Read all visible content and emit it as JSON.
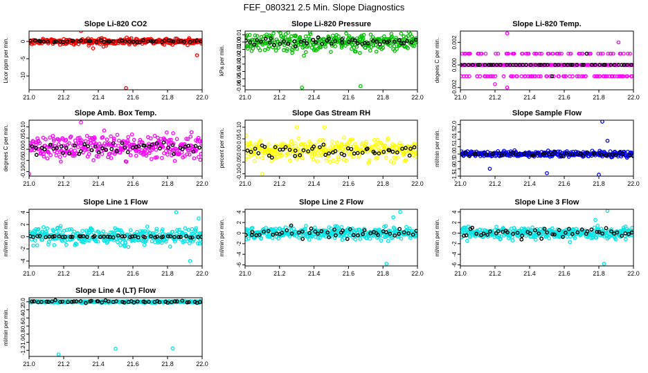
{
  "figure": {
    "title": "FEF_080321  2.5 Min. Slope Diagnostics"
  },
  "chart_data": [
    {
      "type": "scatter",
      "title": "Slope Li-820 CO2",
      "ylabel": "Licor ppm per min.",
      "xlim": [
        21.0,
        22.0
      ],
      "ylim": [
        -14,
        3
      ],
      "x_ticks": [
        "21.0",
        "21.2",
        "21.4",
        "21.6",
        "21.8",
        "22.0"
      ],
      "y_ticks": [
        {
          "v": 0,
          "label": "0"
        },
        {
          "v": -5,
          "label": "-5"
        },
        {
          "v": -10,
          "label": "-10"
        }
      ],
      "color": "#ff0000",
      "center": 0,
      "spread": 0.8,
      "black_spread": 0.3,
      "outliers": [
        [
          21.3,
          3
        ],
        [
          21.37,
          -2
        ],
        [
          21.43,
          -1.5
        ],
        [
          21.56,
          -13.5
        ],
        [
          21.97,
          -4
        ]
      ]
    },
    {
      "type": "scatter",
      "title": "Slope Li-820 Pressure",
      "ylabel": "kPa per min.",
      "xlim": [
        21.0,
        22.0
      ],
      "ylim": [
        -0.065,
        0.015
      ],
      "x_ticks": [
        "21.0",
        "21.2",
        "21.4",
        "21.6",
        "21.8",
        "22.0"
      ],
      "y_ticks": [
        {
          "v": 0.01,
          "label": "0.01"
        },
        {
          "v": 0,
          "label": "0.00"
        },
        {
          "v": -0.01,
          "label": "-0.01"
        },
        {
          "v": -0.02,
          "label": "-0.02"
        },
        {
          "v": -0.03,
          "label": "-0.03"
        },
        {
          "v": -0.04,
          "label": "-0.04"
        },
        {
          "v": -0.05,
          "label": "-0.05"
        },
        {
          "v": -0.06,
          "label": "-0.06"
        }
      ],
      "color": "#00c000",
      "center": 0,
      "spread": 0.012,
      "black_spread": 0.006,
      "outliers": [
        [
          21.33,
          -0.062
        ],
        [
          21.67,
          -0.06
        ]
      ]
    },
    {
      "type": "scatter",
      "title": "Slope Li-820 Temp.",
      "ylabel": "degees C per min.",
      "xlim": [
        21.0,
        22.0
      ],
      "ylim": [
        -0.0022,
        0.003
      ],
      "x_ticks": [
        "21.0",
        "21.2",
        "21.4",
        "21.6",
        "21.8",
        "22.0"
      ],
      "y_ticks": [
        {
          "v": 0.002,
          "label": "0.002"
        },
        {
          "v": 0,
          "label": "0.000"
        },
        {
          "v": -0.002,
          "label": "-0.002"
        }
      ],
      "color": "#ff00ff",
      "center": 0,
      "spread": 0.001,
      "black_spread": 0.0004,
      "quantum": 0.001,
      "outliers": [
        [
          21.27,
          0.0028
        ],
        [
          21.27,
          -0.002
        ],
        [
          21.2,
          -0.0017
        ]
      ]
    },
    {
      "type": "scatter",
      "title": "Slope Amb. Box Temp.",
      "ylabel": "degrees C per min.",
      "xlim": [
        21.0,
        22.0
      ],
      "ylim": [
        -0.12,
        0.13
      ],
      "x_ticks": [
        "21.0",
        "21.2",
        "21.4",
        "21.6",
        "21.8",
        "22.0"
      ],
      "y_ticks": [
        {
          "v": 0.1,
          "label": "0.10"
        },
        {
          "v": 0.05,
          "label": "0.05"
        },
        {
          "v": 0,
          "label": "0.00"
        },
        {
          "v": -0.05,
          "label": "-0.05"
        },
        {
          "v": -0.1,
          "label": "-0.10"
        }
      ],
      "color": "#ff00ff",
      "center": 0.01,
      "spread": 0.05,
      "black_spread": 0.03,
      "outliers": [
        [
          21.3,
          0.12
        ],
        [
          21.0,
          -0.11
        ]
      ]
    },
    {
      "type": "scatter",
      "title": "Slope Gas Stream RH",
      "ylabel": "percent per min.",
      "xlim": [
        21.0,
        22.0
      ],
      "ylim": [
        -0.11,
        0.13
      ],
      "x_ticks": [
        "21.0",
        "21.2",
        "21.4",
        "21.6",
        "21.8",
        "22.0"
      ],
      "y_ticks": [
        {
          "v": 0.1,
          "label": "0.10"
        },
        {
          "v": 0.05,
          "label": "0.05"
        },
        {
          "v": 0,
          "label": "0.00"
        },
        {
          "v": -0.05,
          "label": "-0.05"
        },
        {
          "v": -0.1,
          "label": "-0.10"
        }
      ],
      "color": "#ffff00",
      "center": 0,
      "spread": 0.04,
      "black_spread": 0.03,
      "outliers": [
        [
          21.1,
          -0.1
        ],
        [
          21.3,
          0.1
        ],
        [
          21.46,
          0.1
        ]
      ]
    },
    {
      "type": "scatter",
      "title": "Slope Sample Flow",
      "ylabel": "ml/min per min.",
      "xlim": [
        21.0,
        22.0
      ],
      "ylim": [
        -1.5,
        2.3
      ],
      "x_ticks": [
        "21.0",
        "21.2",
        "21.4",
        "21.6",
        "21.8",
        "22.0"
      ],
      "y_ticks": [
        {
          "v": 2,
          "label": "2.0"
        },
        {
          "v": 1.5,
          "label": "1.5"
        },
        {
          "v": 1,
          "label": "1.0"
        },
        {
          "v": 0.5,
          "label": "0.5"
        },
        {
          "v": 0,
          "label": "0.0"
        },
        {
          "v": -0.5,
          "label": "-0.5"
        },
        {
          "v": -1,
          "label": "-1.0"
        },
        {
          "v": -1.5,
          "label": "-1.5"
        }
      ],
      "color": "#0000ff",
      "center": 0,
      "spread": 0.18,
      "black_spread": 0.15,
      "outliers": [
        [
          21.82,
          2.2
        ],
        [
          21.17,
          -1
        ],
        [
          21.5,
          -1.3
        ],
        [
          21.8,
          -1.4
        ],
        [
          21.85,
          0.9
        ]
      ]
    },
    {
      "type": "scatter",
      "title": "Slope Line 1 Flow",
      "ylabel": "ml/min per min.",
      "xlim": [
        21.0,
        22.0
      ],
      "ylim": [
        -4.8,
        4.5
      ],
      "x_ticks": [
        "21.0",
        "21.2",
        "21.4",
        "21.6",
        "21.8",
        "22.0"
      ],
      "y_ticks": [
        {
          "v": 4,
          "label": "4"
        },
        {
          "v": 2,
          "label": "2"
        },
        {
          "v": 0,
          "label": "0"
        },
        {
          "v": -2,
          "label": "-2"
        },
        {
          "v": -4,
          "label": "-4"
        }
      ],
      "color": "#00e5e5",
      "center": 0,
      "spread": 1.2,
      "black_spread": 0.15,
      "outliers": [
        [
          21.85,
          4
        ],
        [
          21.93,
          -4
        ],
        [
          21.98,
          3
        ]
      ]
    },
    {
      "type": "scatter",
      "title": "Slope Line 2 Flow",
      "ylabel": "ml/min per min.",
      "xlim": [
        21.0,
        22.0
      ],
      "ylim": [
        -6.2,
        4.5
      ],
      "x_ticks": [
        "21.0",
        "21.2",
        "21.4",
        "21.6",
        "21.8",
        "22.0"
      ],
      "y_ticks": [
        {
          "v": 4,
          "label": "4"
        },
        {
          "v": 2,
          "label": "2"
        },
        {
          "v": 0,
          "label": "0"
        },
        {
          "v": -2,
          "label": "-2"
        },
        {
          "v": -4,
          "label": "-4"
        },
        {
          "v": -6,
          "label": "-6"
        }
      ],
      "color": "#00e5e5",
      "center": 0,
      "spread": 1,
      "black_spread": 1,
      "outliers": [
        [
          21.82,
          -5.8
        ],
        [
          21.9,
          4
        ],
        [
          21.86,
          3
        ]
      ]
    },
    {
      "type": "scatter",
      "title": "Slope Line 3 Flow",
      "ylabel": "ml/min per min.",
      "xlim": [
        21.0,
        22.0
      ],
      "ylim": [
        -6.2,
        4.5
      ],
      "x_ticks": [
        "21.0",
        "21.2",
        "21.4",
        "21.6",
        "21.8",
        "22.0"
      ],
      "y_ticks": [
        {
          "v": 4,
          "label": "4"
        },
        {
          "v": 2,
          "label": "2"
        },
        {
          "v": 0,
          "label": "0"
        },
        {
          "v": -2,
          "label": "-2"
        },
        {
          "v": -4,
          "label": "-4"
        },
        {
          "v": -6,
          "label": "-6"
        }
      ],
      "color": "#00e5e5",
      "center": 0,
      "spread": 1,
      "black_spread": 1,
      "outliers": [
        [
          21.83,
          -5.8
        ],
        [
          21.85,
          4.2
        ],
        [
          21.78,
          2.5
        ]
      ]
    },
    {
      "type": "scatter",
      "title": "Slope Line 4 (LT) Flow",
      "ylabel": "ml/min per min.",
      "xlim": [
        21.0,
        22.0
      ],
      "ylim": [
        -1.35,
        0.1
      ],
      "x_ticks": [
        "21.0",
        "21.2",
        "21.4",
        "21.6",
        "21.8",
        "22.0"
      ],
      "y_ticks": [
        {
          "v": 0,
          "label": "0.0"
        },
        {
          "v": -0.2,
          "label": "-0.2"
        },
        {
          "v": -0.4,
          "label": "-0.4"
        },
        {
          "v": -0.6,
          "label": "-0.6"
        },
        {
          "v": -0.8,
          "label": "-0.8"
        },
        {
          "v": -1.0,
          "label": "-1.0"
        },
        {
          "v": -1.2,
          "label": "-1.2"
        }
      ],
      "color": "#00e5e5",
      "center": 0,
      "spread": 0.02,
      "black_spread": 0.03,
      "outliers": [
        [
          21.17,
          -1.3
        ],
        [
          21.5,
          -1.16
        ],
        [
          21.83,
          -1.15
        ]
      ]
    }
  ]
}
